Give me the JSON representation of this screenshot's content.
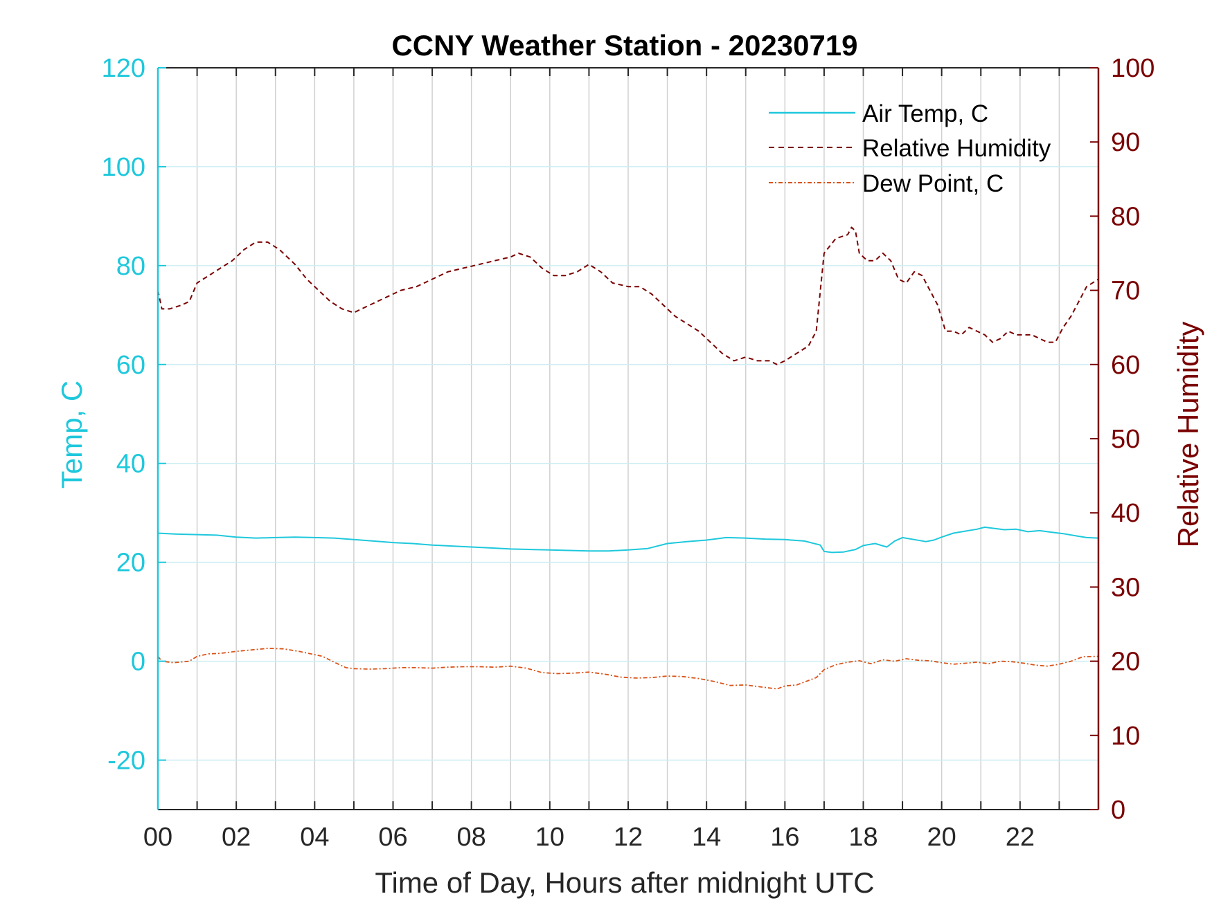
{
  "chart_data": {
    "type": "line",
    "title": "CCNY Weather Station - 20230719",
    "xlabel": "Time of Day, Hours after midnight UTC",
    "ylabel_left": "Temp, C",
    "ylabel_right": "Relative Humidity",
    "xlim": [
      0,
      24
    ],
    "ylim_left": [
      -30,
      120
    ],
    "ylim_right": [
      0,
      100
    ],
    "x_ticks": [
      0,
      2,
      4,
      6,
      8,
      10,
      12,
      14,
      16,
      18,
      20,
      22
    ],
    "x_tick_labels": [
      "00",
      "02",
      "04",
      "06",
      "08",
      "10",
      "12",
      "14",
      "16",
      "18",
      "20",
      "22"
    ],
    "y_left_ticks": [
      -20,
      0,
      20,
      40,
      60,
      80,
      100,
      120
    ],
    "y_left_tick_labels": [
      "-20",
      "0",
      "20",
      "40",
      "60",
      "80",
      "100",
      "120"
    ],
    "y_right_ticks": [
      0,
      10,
      20,
      30,
      40,
      50,
      60,
      70,
      80,
      90,
      100
    ],
    "y_right_tick_labels": [
      "0",
      "10",
      "20",
      "30",
      "40",
      "50",
      "60",
      "70",
      "80",
      "90",
      "100"
    ],
    "grid": "vertical lines every hour; horizontal lines at left-axis ticks",
    "legend_position": "top-right",
    "colors": {
      "left_axis": "#1ec8dc",
      "right_axis": "#7a0000",
      "air_temp": "#1ec8dc",
      "rh": "#7a0000",
      "dew_point": "#d95319",
      "grid_vertical": "#d0d0d0",
      "grid_horizontal": "#cdeef3"
    },
    "series": [
      {
        "name": "Air Temp, C",
        "axis": "left",
        "style": "solid",
        "x": [
          0,
          0.5,
          1,
          1.5,
          2,
          2.5,
          3,
          3.5,
          4,
          4.5,
          5,
          5.5,
          6,
          6.5,
          7,
          7.5,
          8,
          8.5,
          9,
          9.5,
          10,
          10.5,
          11,
          11.5,
          12,
          12.5,
          13,
          13.5,
          14,
          14.5,
          15,
          15.5,
          16,
          16.5,
          16.9,
          17.0,
          17.2,
          17.5,
          17.8,
          18,
          18.3,
          18.6,
          18.8,
          19,
          19.3,
          19.6,
          19.8,
          20.0,
          20.3,
          20.6,
          20.9,
          21.1,
          21.3,
          21.6,
          21.9,
          22.2,
          22.5,
          22.8,
          23.1,
          23.4,
          23.7,
          24
        ],
        "y": [
          25.9,
          25.7,
          25.6,
          25.5,
          25.1,
          24.9,
          25.0,
          25.1,
          25.0,
          24.9,
          24.6,
          24.3,
          24.0,
          23.8,
          23.5,
          23.3,
          23.1,
          22.9,
          22.7,
          22.6,
          22.5,
          22.4,
          22.3,
          22.3,
          22.5,
          22.8,
          23.8,
          24.2,
          24.5,
          25.0,
          24.9,
          24.7,
          24.6,
          24.3,
          23.5,
          22.2,
          22.0,
          22.1,
          22.6,
          23.4,
          23.8,
          23.1,
          24.3,
          25.0,
          24.6,
          24.2,
          24.5,
          25.1,
          25.9,
          26.3,
          26.7,
          27.1,
          26.9,
          26.6,
          26.7,
          26.2,
          26.4,
          26.1,
          25.8,
          25.4,
          25.0,
          24.9
        ]
      },
      {
        "name": "Relative Humidity",
        "axis": "right",
        "style": "dashed",
        "x": [
          0,
          0.1,
          0.3,
          0.6,
          0.8,
          1.0,
          1.3,
          1.6,
          1.9,
          2.2,
          2.5,
          2.8,
          3.1,
          3.5,
          3.8,
          4.1,
          4.4,
          4.7,
          5.0,
          5.4,
          5.8,
          6.2,
          6.6,
          7.0,
          7.4,
          7.8,
          8.2,
          8.6,
          9.0,
          9.2,
          9.5,
          9.8,
          10.1,
          10.4,
          10.7,
          11.0,
          11.3,
          11.6,
          12.0,
          12.3,
          12.6,
          12.9,
          13.2,
          13.5,
          13.8,
          14.1,
          14.4,
          14.7,
          15.0,
          15.3,
          15.6,
          15.8,
          16.0,
          16.3,
          16.6,
          16.8,
          17.0,
          17.3,
          17.6,
          17.7,
          17.8,
          17.9,
          18.1,
          18.3,
          18.5,
          18.7,
          18.9,
          19.1,
          19.3,
          19.5,
          19.7,
          19.9,
          20.1,
          20.3,
          20.5,
          20.7,
          20.9,
          21.1,
          21.3,
          21.5,
          21.7,
          21.9,
          22.1,
          22.3,
          22.5,
          22.7,
          22.9,
          23.1,
          23.3,
          23.5,
          23.7,
          24
        ],
        "y": [
          70,
          67.5,
          67.5,
          68,
          68.5,
          71,
          72,
          73,
          74,
          75.5,
          76.5,
          76.5,
          75.5,
          73.5,
          71.5,
          70,
          68.5,
          67.5,
          67.0,
          68,
          69,
          70,
          70.5,
          71.5,
          72.5,
          73,
          73.5,
          74,
          74.5,
          75,
          74.5,
          73,
          72,
          72,
          72.5,
          73.5,
          72.5,
          71,
          70.5,
          70.5,
          69.5,
          68,
          66.5,
          65.5,
          64.5,
          63,
          61.5,
          60.5,
          61,
          60.5,
          60.5,
          60,
          60.5,
          61.5,
          62.5,
          64.5,
          75,
          77,
          77.5,
          78.5,
          78,
          75,
          74,
          74,
          75,
          74,
          71.5,
          71,
          72.5,
          72,
          70,
          68,
          64.5,
          64.5,
          64,
          65,
          64.5,
          64,
          63,
          63.5,
          64.5,
          64,
          64,
          64,
          63.5,
          63,
          63,
          65,
          66.5,
          68.5,
          70.5,
          71.5
        ]
      },
      {
        "name": "Dew Point, C",
        "axis": "left",
        "style": "dash-dot",
        "x": [
          0,
          0.1,
          0.4,
          0.8,
          1.0,
          1.3,
          1.6,
          2.0,
          2.4,
          2.8,
          3.2,
          3.6,
          3.9,
          4.2,
          4.5,
          4.8,
          5.0,
          5.4,
          5.8,
          6.2,
          6.6,
          7.0,
          7.4,
          7.8,
          8.2,
          8.6,
          9.0,
          9.4,
          9.8,
          10.2,
          10.6,
          11.0,
          11.4,
          11.8,
          12.2,
          12.6,
          13.0,
          13.4,
          13.8,
          14.2,
          14.6,
          15.0,
          15.4,
          15.8,
          16.0,
          16.3,
          16.6,
          16.8,
          17.0,
          17.3,
          17.6,
          17.9,
          18.2,
          18.5,
          18.8,
          19.1,
          19.4,
          19.7,
          20.0,
          20.3,
          20.6,
          20.9,
          21.2,
          21.5,
          21.8,
          22.1,
          22.4,
          22.7,
          23.0,
          23.3,
          23.6,
          24
        ],
        "y": [
          1.0,
          0.0,
          -0.3,
          0.0,
          1.0,
          1.5,
          1.6,
          2.0,
          2.3,
          2.6,
          2.5,
          2.0,
          1.5,
          1.0,
          -0.2,
          -1.3,
          -1.5,
          -1.6,
          -1.5,
          -1.3,
          -1.3,
          -1.4,
          -1.2,
          -1.1,
          -1.1,
          -1.2,
          -1.0,
          -1.4,
          -2.3,
          -2.5,
          -2.4,
          -2.2,
          -2.6,
          -3.2,
          -3.4,
          -3.3,
          -3.0,
          -3.1,
          -3.5,
          -4.1,
          -4.9,
          -4.8,
          -5.2,
          -5.6,
          -5.0,
          -4.8,
          -3.9,
          -3.3,
          -1.7,
          -0.7,
          -0.2,
          0.1,
          -0.5,
          0.3,
          0.0,
          0.5,
          0.2,
          0.1,
          -0.3,
          -0.6,
          -0.4,
          -0.2,
          -0.5,
          0.0,
          -0.1,
          -0.4,
          -0.8,
          -1.0,
          -0.6,
          0.0,
          0.9,
          1.0
        ]
      }
    ]
  }
}
